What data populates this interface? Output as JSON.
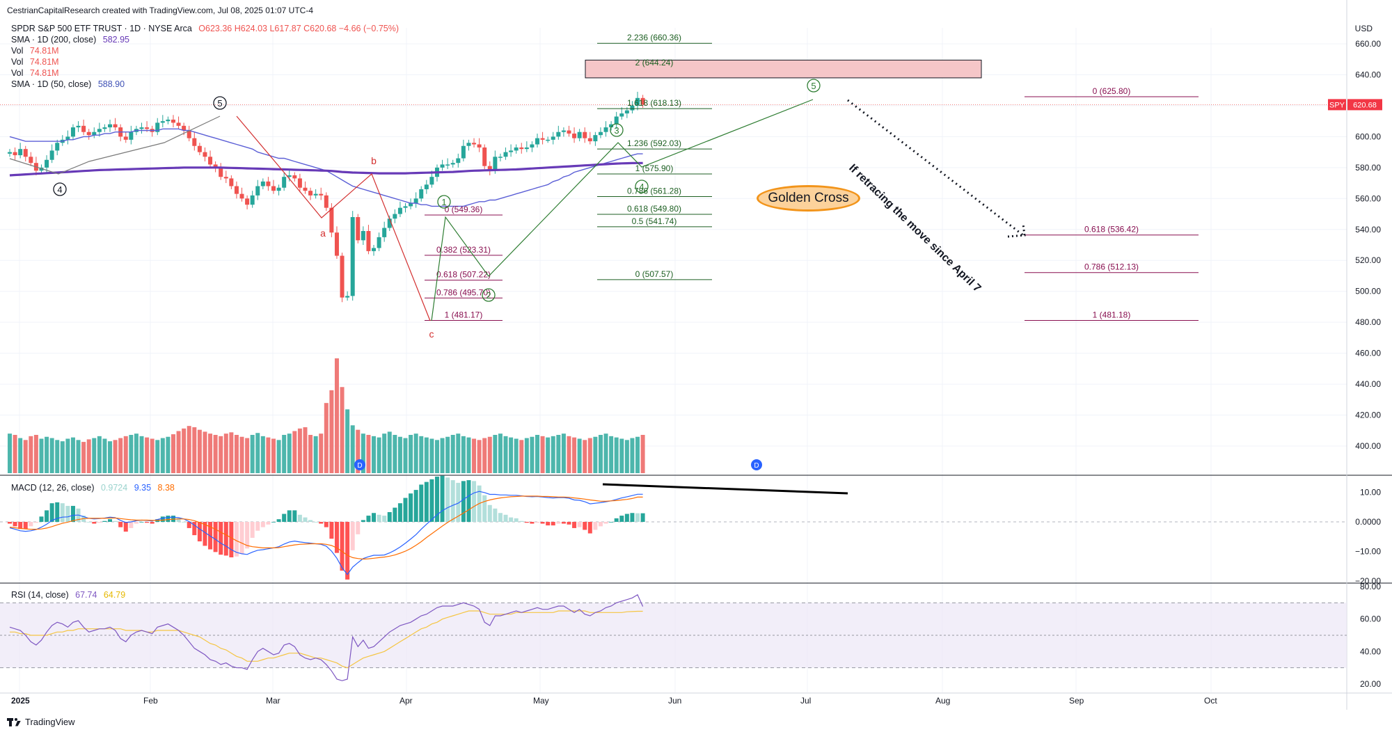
{
  "header": {
    "credit": "CestrianCapitalResearch created with TradingView.com, Jul 08, 2025 01:07 UTC-4"
  },
  "legend": {
    "symbol": "SPDR S&P 500 ETF TRUST · 1D · NYSE Arca",
    "ohlc": "O623.36  H624.03  L617.87  C620.68  −4.66 (−0.75%)",
    "sma200_label": "SMA · 1D (200, close)",
    "sma200_value": "582.95",
    "vol_label": "Vol",
    "vol_value": "74.81M",
    "sma50_label": "SMA · 1D (50, close)",
    "sma50_value": "588.90",
    "macd_label": "MACD (12, 26, close)",
    "macd_hist": "0.9724",
    "macd_line": "9.35",
    "macd_signal": "8.38",
    "rsi_label": "RSI (14, close)",
    "rsi_value": "67.74",
    "rsi_ma": "64.79"
  },
  "colors": {
    "up": "#26a69a",
    "down": "#ef5350",
    "sma200": "#673ab7",
    "sma50": "#5b5fd6",
    "macd_line": "#2962ff",
    "macd_signal": "#ff6d00",
    "rsi_line": "#7e57c2",
    "rsi_ma": "#fdd835",
    "fib_green": "#1b5e20",
    "fib_purple": "#880e4f",
    "wave_black": "#131722",
    "wave_red": "#d32f2f",
    "wave_green": "#2e7d32"
  },
  "annotations": {
    "golden_cross": "Golden Cross",
    "retrace_text": "If retracing the move since April 7",
    "price_tag_symbol": "SPY",
    "price_tag_value": "620.68",
    "currency": "USD",
    "footer": "TradingView"
  },
  "chart_data": [
    {
      "type": "candlestick",
      "title": "SPDR S&P 500 ETF TRUST · 1D · NYSE Arca",
      "x_tick_labels": [
        "2025",
        "Feb",
        "Mar",
        "Apr",
        "May",
        "Jun",
        "Jul",
        "Aug",
        "Sep",
        "Oct"
      ],
      "y_tick_labels": [
        "660.00",
        "640.00",
        "620.00",
        "600.00",
        "580.00",
        "560.00",
        "540.00",
        "520.00",
        "500.00",
        "480.00",
        "460.00",
        "440.00",
        "420.00",
        "400.00"
      ],
      "ylim": [
        380,
        670
      ],
      "close_series": [
        590,
        588,
        592,
        587,
        583,
        578,
        580,
        585,
        591,
        596,
        598,
        600,
        606,
        607,
        603,
        601,
        603,
        605,
        606,
        608,
        606,
        600,
        598,
        603,
        605,
        606,
        605,
        603,
        609,
        610,
        611,
        609,
        607,
        604,
        599,
        594,
        590,
        587,
        582,
        580,
        574,
        573,
        568,
        563,
        560,
        556,
        562,
        568,
        571,
        568,
        565,
        567,
        574,
        575,
        573,
        567,
        565,
        562,
        563,
        562,
        554,
        538,
        523,
        496,
        497,
        548,
        533,
        539,
        526,
        528,
        535,
        541,
        547,
        550,
        554,
        555,
        557,
        560,
        566,
        569,
        574,
        580,
        582,
        582,
        583,
        586,
        594,
        596,
        595,
        593,
        581,
        578,
        587,
        587,
        590,
        591,
        593,
        592,
        593,
        595,
        599,
        598,
        598,
        600,
        603,
        604,
        602,
        599,
        603,
        599,
        597,
        601,
        603,
        606,
        608,
        613,
        615,
        617,
        620,
        625,
        620.68
      ],
      "sma200": [
        575,
        575.2,
        575.4,
        575.6,
        575.8,
        576,
        576.2,
        576.4,
        576.6,
        576.8,
        577,
        577.2,
        577.4,
        577.6,
        577.8,
        578,
        578.2,
        578.4,
        578.5,
        578.6,
        578.7,
        578.8,
        578.9,
        579,
        579.1,
        579.2,
        579.3,
        579.4,
        579.5,
        579.6,
        579.7,
        579.8,
        579.9,
        580,
        580,
        580,
        580,
        580,
        580,
        580,
        580,
        579.9,
        579.8,
        579.7,
        579.6,
        579.5,
        579.4,
        579.3,
        579.2,
        579.1,
        579,
        578.9,
        578.8,
        578.7,
        578.6,
        578.5,
        578.4,
        578.3,
        578.2,
        578.1,
        578,
        577.8,
        577.5,
        577.2,
        577,
        576.8,
        576.7,
        576.6,
        576.5,
        576.4,
        576.3,
        576.3,
        576.3,
        576.3,
        576.3,
        576.3,
        576.4,
        576.5,
        576.6,
        576.7,
        576.8,
        576.9,
        577,
        577.1,
        577.2,
        577.4,
        577.6,
        577.8,
        578,
        578.1,
        578.2,
        578.3,
        578.4,
        578.5,
        578.6,
        578.7,
        578.8,
        579,
        579.2,
        579.4,
        579.6,
        579.8,
        580,
        580.2,
        580.4,
        580.6,
        580.8,
        581,
        581.2,
        581.4,
        581.6,
        581.8,
        582,
        582.2,
        582.4,
        582.6,
        582.7,
        582.8,
        582.9,
        582.95,
        582.95
      ],
      "sma50": [
        600,
        599,
        598,
        597,
        597,
        597,
        597,
        597,
        597,
        597,
        597,
        598,
        598,
        599,
        600,
        600,
        601,
        601,
        602,
        602,
        603,
        603,
        603,
        603,
        604,
        604,
        604,
        604,
        604,
        605,
        605,
        605,
        605,
        604,
        604,
        603,
        602,
        601,
        600,
        599,
        598,
        597,
        596,
        595,
        594,
        593,
        592,
        590,
        589,
        588,
        587,
        586,
        586,
        585,
        584,
        583,
        582,
        581,
        580,
        579,
        578,
        576,
        574,
        572,
        570,
        568,
        567,
        566,
        565,
        564,
        563,
        562,
        561,
        560,
        559,
        558,
        557,
        557,
        556,
        556,
        555,
        555,
        555,
        555,
        555,
        555,
        555,
        556,
        557,
        558,
        558,
        559,
        559,
        560,
        561,
        562,
        563,
        564,
        565,
        566,
        567,
        568,
        569,
        571,
        572,
        574,
        575,
        577,
        578,
        579,
        580,
        581,
        582,
        583,
        584,
        585,
        586,
        587,
        588,
        588.9,
        588.9
      ],
      "volume": [
        62,
        60,
        55,
        52,
        58,
        60,
        54,
        57,
        55,
        52,
        50,
        54,
        56,
        52,
        49,
        53,
        55,
        58,
        54,
        50,
        52,
        55,
        58,
        60,
        62,
        58,
        56,
        54,
        52,
        55,
        57,
        61,
        66,
        70,
        74,
        72,
        68,
        65,
        62,
        60,
        58,
        62,
        64,
        60,
        57,
        55,
        60,
        63,
        58,
        56,
        54,
        52,
        60,
        62,
        66,
        70,
        72,
        60,
        58,
        62,
        110,
        130,
        180,
        135,
        100,
        75,
        68,
        62,
        60,
        58,
        56,
        62,
        65,
        60,
        57,
        55,
        60,
        62,
        58,
        56,
        54,
        52,
        55,
        57,
        60,
        62,
        58,
        56,
        54,
        52,
        55,
        57,
        60,
        62,
        58,
        56,
        54,
        52,
        55,
        57,
        60,
        58,
        56,
        58,
        60,
        62,
        58,
        56,
        54,
        52,
        55,
        57,
        60,
        62,
        58,
        56,
        54,
        52,
        55,
        57,
        60
      ],
      "fib_retracement_left": [
        {
          "ratio": "0",
          "value": 549.36
        },
        {
          "ratio": "0.382",
          "value": 523.31
        },
        {
          "ratio": "0.618",
          "value": 507.22
        },
        {
          "ratio": "0.786",
          "value": 495.7
        },
        {
          "ratio": "1",
          "value": 481.17
        }
      ],
      "fib_extension_mid": [
        {
          "ratio": "2.236",
          "value": 660.36
        },
        {
          "ratio": "2",
          "value": 644.24
        },
        {
          "ratio": "1.618",
          "value": 618.13
        },
        {
          "ratio": "1.236",
          "value": 592.03
        },
        {
          "ratio": "1",
          "value": 575.9
        },
        {
          "ratio": "0.786",
          "value": 561.28
        },
        {
          "ratio": "0.618",
          "value": 549.8
        },
        {
          "ratio": "0.5",
          "value": 541.74
        },
        {
          "ratio": "0",
          "value": 507.57
        }
      ],
      "fib_retracement_right": [
        {
          "ratio": "0",
          "value": 625.8
        },
        {
          "ratio": "0.618",
          "value": 536.42
        },
        {
          "ratio": "0.786",
          "value": 512.13
        },
        {
          "ratio": "1",
          "value": 481.18
        }
      ],
      "wave_labels_black": [
        "④",
        "⑤"
      ],
      "wave_labels_red": [
        "a",
        "b",
        "c"
      ],
      "wave_labels_green": [
        "①",
        "②",
        "③",
        "④",
        "⑤"
      ]
    },
    {
      "type": "line",
      "title": "MACD (12, 26, close)",
      "y_tick_labels": [
        "10.00",
        "0.0000",
        "−10.00",
        "−20.00"
      ],
      "ylim": [
        -21,
        14
      ],
      "macd": [
        -2,
        -2.5,
        -3,
        -3.2,
        -3,
        -2.6,
        -1.8,
        -0.8,
        0.5,
        1.2,
        1.6,
        1.7,
        2.2,
        2.3,
        1.8,
        1.2,
        1,
        1.1,
        1.3,
        1.6,
        1.4,
        0.5,
        -0.2,
        0,
        0.4,
        0.6,
        0.5,
        0.3,
        0.8,
        1.2,
        1.5,
        1.6,
        1.4,
        1,
        0.1,
        -1.1,
        -2.4,
        -3.6,
        -4.8,
        -5.9,
        -7.2,
        -8.2,
        -9.4,
        -10.3,
        -10.8,
        -11,
        -10.2,
        -9.6,
        -9.4,
        -9.1,
        -8.8,
        -8.4,
        -7.5,
        -6.8,
        -6.5,
        -6.8,
        -7,
        -7.2,
        -7.4,
        -7.6,
        -8.2,
        -9.9,
        -12.3,
        -15.5,
        -17.8,
        -15.3,
        -13.8,
        -12.4,
        -11.8,
        -11.3,
        -11.3,
        -11.2,
        -10.5,
        -9.6,
        -8.5,
        -7.2,
        -5.8,
        -4.3,
        -2.5,
        -0.8,
        0.8,
        2.4,
        3.8,
        4.8,
        5.6,
        6.3,
        7.6,
        8.8,
        9.8,
        10.3,
        9.9,
        9.3,
        9.3,
        9.1,
        9.1,
        9.0,
        9.0,
        8.8,
        8.6,
        8.5,
        8.6,
        8.4,
        8.2,
        8.1,
        8.2,
        8.2,
        8,
        7.4,
        7.3,
        6.8,
        6.1,
        6.3,
        6.5,
        6.8,
        7.1,
        7.6,
        8.1,
        8.5,
        8.9,
        9.35,
        9.35
      ],
      "signal": [
        -1.8,
        -2,
        -2.2,
        -2.4,
        -2.5,
        -2.5,
        -2.4,
        -2.1,
        -1.6,
        -1,
        -0.5,
        -0.1,
        0.4,
        0.8,
        1.1,
        1.2,
        1.2,
        1.2,
        1.2,
        1.3,
        1.3,
        1.1,
        0.9,
        0.7,
        0.6,
        0.6,
        0.6,
        0.5,
        0.5,
        0.6,
        0.8,
        0.9,
        1,
        1,
        0.8,
        0.4,
        -0.2,
        -0.9,
        -1.7,
        -2.5,
        -3.5,
        -4.4,
        -5.4,
        -6.4,
        -7.2,
        -8,
        -8.4,
        -8.6,
        -8.8,
        -8.8,
        -8.8,
        -8.7,
        -8.4,
        -8.1,
        -7.8,
        -7.6,
        -7.5,
        -7.4,
        -7.4,
        -7.4,
        -7.6,
        -8,
        -8.8,
        -10,
        -11.3,
        -12.1,
        -12.4,
        -12.6,
        -12.5,
        -12.3,
        -12.1,
        -11.9,
        -11.6,
        -11.2,
        -10.6,
        -9.9,
        -9,
        -7.9,
        -6.7,
        -5.3,
        -4,
        -2.7,
        -1.4,
        -0.2,
        0.9,
        1.9,
        3,
        4.1,
        5.2,
        6.2,
        6.9,
        7.4,
        7.8,
        8.1,
        8.3,
        8.5,
        8.6,
        8.7,
        8.7,
        8.7,
        8.7,
        8.6,
        8.6,
        8.5,
        8.4,
        8.4,
        8.3,
        8.1,
        7.9,
        7.7,
        7.4,
        7.2,
        7,
        7,
        7.1,
        7.2,
        7.4,
        7.6,
        7.9,
        8.38,
        8.38
      ]
    },
    {
      "type": "line",
      "title": "RSI (14, close)",
      "y_tick_labels": [
        "80.00",
        "60.00",
        "40.00",
        "20.00"
      ],
      "ylim": [
        17,
        82
      ],
      "band": [
        30,
        70
      ],
      "rsi": [
        55,
        54,
        53,
        50,
        46,
        44,
        47,
        52,
        56,
        58,
        57,
        55,
        58,
        59,
        55,
        52,
        53,
        54,
        54,
        55,
        53,
        48,
        46,
        50,
        52,
        53,
        52,
        51,
        55,
        56,
        57,
        55,
        53,
        50,
        46,
        42,
        40,
        38,
        35,
        34,
        32,
        33,
        31,
        30,
        30,
        29,
        35,
        40,
        42,
        40,
        38,
        39,
        44,
        45,
        43,
        38,
        36,
        35,
        36,
        35,
        32,
        28,
        23,
        22,
        23,
        49,
        43,
        47,
        42,
        43,
        46,
        49,
        52,
        54,
        56,
        57,
        58,
        60,
        62,
        63,
        65,
        67,
        68,
        68,
        68,
        69,
        70,
        69,
        68,
        66,
        58,
        56,
        62,
        62,
        63,
        64,
        65,
        64,
        65,
        66,
        67,
        66,
        66,
        67,
        68,
        68,
        66,
        64,
        66,
        63,
        62,
        64,
        65,
        67,
        68,
        70,
        71,
        72,
        73,
        75,
        67.74
      ],
      "rsi_ma": [
        52,
        52,
        51,
        51,
        50,
        50,
        50,
        50,
        51,
        52,
        52,
        53,
        53,
        54,
        54,
        54,
        54,
        54,
        54,
        54,
        54,
        54,
        53,
        53,
        53,
        53,
        52,
        52,
        53,
        53,
        53,
        53,
        53,
        52,
        51,
        50,
        49,
        47,
        45,
        44,
        42,
        41,
        39,
        37,
        36,
        34,
        34,
        34,
        35,
        36,
        36,
        37,
        38,
        39,
        39,
        39,
        38,
        37,
        36,
        36,
        35,
        34,
        33,
        31,
        30,
        32,
        34,
        36,
        37,
        38,
        39,
        40,
        42,
        44,
        46,
        48,
        50,
        52,
        54,
        55,
        57,
        58,
        60,
        61,
        62,
        63,
        64,
        65,
        65,
        65,
        64,
        63,
        63,
        63,
        63,
        63,
        64,
        64,
        64,
        64,
        64,
        64,
        64,
        64,
        65,
        65,
        65,
        65,
        65,
        65,
        64,
        64,
        64,
        64,
        64,
        64,
        64,
        64.5,
        64.6,
        64.8,
        64.79
      ]
    }
  ]
}
